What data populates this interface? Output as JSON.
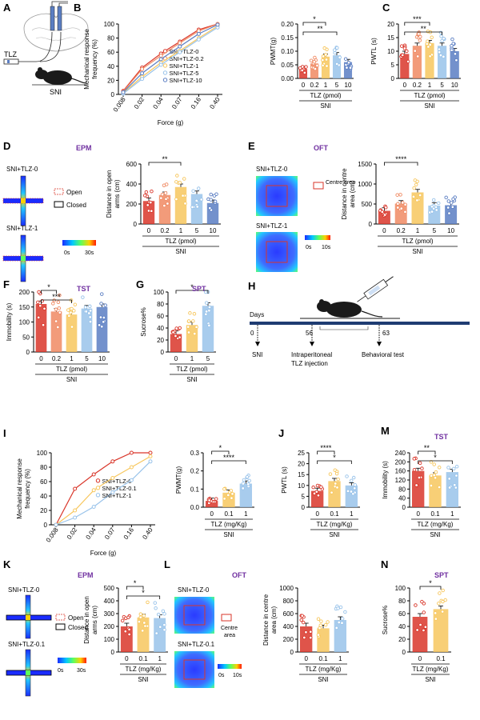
{
  "colors": {
    "dose0": "#d9362a",
    "dose02": "#f08a63",
    "dose1": "#f7c75e",
    "dose5": "#99c3ea",
    "dose10": "#5b7ec3",
    "sig": "#000000",
    "purple": "#7030a0"
  },
  "common": {
    "sni": "SNI",
    "tlz_pmol": "TLZ (pmol)",
    "tlz_mgkg": "TLZ (mg/Kg)"
  },
  "panel_a": {
    "letter": "A",
    "tlz": "TLZ",
    "sni": "SNI"
  },
  "panel_d": {
    "letter": "D",
    "title": "EPM",
    "img1": "SNI+TLZ-0",
    "img2": "SNI+TLZ-1",
    "open": "Open",
    "closed": "Closed",
    "scale_min": "0s",
    "scale_max": "30s"
  },
  "panel_e": {
    "letter": "E",
    "title": "OFT",
    "img1": "SNI+TLZ-0",
    "img2": "SNI+TLZ-1",
    "centre": "Centre area",
    "scale_min": "0s",
    "scale_max": "10s"
  },
  "panel_f": {
    "letter": "F",
    "title": "TST"
  },
  "panel_g": {
    "letter": "G",
    "title": "SPT"
  },
  "panel_h": {
    "letter": "H",
    "days": "Days",
    "d0": "0",
    "d56": "56",
    "d63": "63",
    "sni": "SNI",
    "inj1": "Intraperitoneal",
    "inj2": "TLZ injection",
    "test": "Behavioral test"
  },
  "panel_k": {
    "letter": "K",
    "title": "EPM",
    "img1": "SNI+TLZ-0",
    "img2": "SNI+TLZ-0.1",
    "open": "Open",
    "closed": "Closed",
    "scale_min": "0s",
    "scale_max": "30s"
  },
  "panel_l": {
    "letter": "L",
    "title": "OFT",
    "img1": "SNI+TLZ-0",
    "img2": "SNI+TLZ-0.1",
    "centre1": "Centre",
    "centre2": "area",
    "scale_min": "0s",
    "scale_max": "10s"
  },
  "panel_m": {
    "letter": "M",
    "title": "TST"
  },
  "panel_n": {
    "letter": "N",
    "title": "SPT"
  },
  "chart_data": [
    {
      "id": "B-line",
      "letter": "B",
      "type": "line",
      "xlabel": "Force (g)",
      "ylabel": "Mechanical response frequency (%)",
      "x": [
        "0.008",
        "0.02",
        "0.04",
        "0.07",
        "0.16",
        "0.40"
      ],
      "ylim": [
        0,
        100
      ],
      "yticks": [
        0,
        20,
        40,
        60,
        80,
        100
      ],
      "series": [
        {
          "name": "SNI+TLZ-0",
          "color": "#d9362a",
          "values": [
            5,
            38,
            58,
            75,
            92,
            100
          ]
        },
        {
          "name": "SNI+TLZ-0.2",
          "color": "#f08a63",
          "values": [
            4,
            36,
            55,
            73,
            90,
            100
          ]
        },
        {
          "name": "SNI+TLZ-1",
          "color": "#f7c75e",
          "values": [
            2,
            25,
            45,
            62,
            80,
            97
          ]
        },
        {
          "name": "SNI+TLZ-5",
          "color": "#99c3ea",
          "values": [
            1,
            22,
            42,
            60,
            78,
            95
          ]
        },
        {
          "name": "SNI+TLZ-10",
          "color": "#5b7ec3",
          "values": [
            3,
            30,
            50,
            68,
            86,
            99
          ]
        }
      ]
    },
    {
      "id": "B-bar",
      "letter": "",
      "type": "bar",
      "categories": [
        "0",
        "0.2",
        "1",
        "5",
        "10"
      ],
      "values": [
        0.035,
        0.055,
        0.08,
        0.085,
        0.06
      ],
      "colors": [
        "#d9362a",
        "#f08a63",
        "#f7c75e",
        "#99c3ea",
        "#5b7ec3"
      ],
      "ylabel": "PWMT(g)",
      "ylim": [
        0,
        0.2
      ],
      "yticks": [
        "0.00",
        "0.05",
        "0.10",
        "0.15",
        "0.20"
      ],
      "xlabel": "TLZ (pmol)",
      "group": "SNI",
      "sig": [
        {
          "from": 0,
          "to": 2,
          "label": "*"
        },
        {
          "from": 0,
          "to": 3,
          "label": "**"
        }
      ]
    },
    {
      "id": "C",
      "letter": "C",
      "type": "bar",
      "categories": [
        "0",
        "0.2",
        "1",
        "5",
        "10"
      ],
      "values": [
        9,
        12,
        13,
        12,
        10
      ],
      "colors": [
        "#d9362a",
        "#f08a63",
        "#f7c75e",
        "#99c3ea",
        "#5b7ec3"
      ],
      "ylabel": "PWTL (s)",
      "ylim": [
        0,
        20
      ],
      "yticks": [
        "0",
        "5",
        "10",
        "15",
        "20"
      ],
      "xlabel": "TLZ (pmol)",
      "group": "SNI",
      "sig": [
        {
          "from": 0,
          "to": 2,
          "label": "***"
        },
        {
          "from": 0,
          "to": 3,
          "label": "**"
        }
      ]
    },
    {
      "id": "D-bar",
      "letter": "",
      "type": "bar",
      "categories": [
        "0",
        "0.2",
        "1",
        "5",
        "10"
      ],
      "values": [
        230,
        290,
        370,
        300,
        210
      ],
      "colors": [
        "#d9362a",
        "#f08a63",
        "#f7c75e",
        "#99c3ea",
        "#5b7ec3"
      ],
      "ylabel": "Distance in open arms (cm)",
      "ylim": [
        0,
        600
      ],
      "yticks": [
        "0",
        "200",
        "400",
        "600"
      ],
      "xlabel": "TLZ (pmol)",
      "group": "SNI",
      "sig": [
        {
          "from": 0,
          "to": 2,
          "label": "**"
        }
      ]
    },
    {
      "id": "E-bar",
      "letter": "",
      "type": "bar",
      "categories": [
        "0",
        "0.2",
        "1",
        "5",
        "10"
      ],
      "values": [
        330,
        510,
        790,
        460,
        470
      ],
      "colors": [
        "#d9362a",
        "#f08a63",
        "#f7c75e",
        "#99c3ea",
        "#5b7ec3"
      ],
      "ylabel": "Distance in centre area (cm)",
      "ylim": [
        0,
        1500
      ],
      "yticks": [
        "0",
        "500",
        "1000",
        "1500"
      ],
      "xlabel": "TLZ (pmol)",
      "group": "SNI",
      "sig": [
        {
          "from": 0,
          "to": 2,
          "label": "****"
        }
      ]
    },
    {
      "id": "F",
      "letter": "F",
      "type": "bar",
      "categories": [
        "0",
        "0.2",
        "1",
        "5",
        "10"
      ],
      "values": [
        160,
        135,
        125,
        145,
        150
      ],
      "colors": [
        "#d9362a",
        "#f08a63",
        "#f7c75e",
        "#99c3ea",
        "#5b7ec3"
      ],
      "ylabel": "Immobility (s)",
      "ylim": [
        0,
        200
      ],
      "yticks": [
        "0",
        "50",
        "100",
        "150",
        "200"
      ],
      "xlabel": "TLZ (pmol)",
      "group": "SNI",
      "sig": [
        {
          "from": 0,
          "to": 1,
          "label": "*"
        },
        {
          "from": 0,
          "to": 2,
          "label": "***"
        }
      ]
    },
    {
      "id": "G",
      "letter": "G",
      "type": "bar",
      "categories": [
        "0",
        "1",
        "5"
      ],
      "values": [
        30,
        45,
        77
      ],
      "colors": [
        "#d9362a",
        "#f7c75e",
        "#99c3ea"
      ],
      "ylabel": "Sucrose%",
      "ylim": [
        0,
        100
      ],
      "yticks": [
        "0",
        "20",
        "40",
        "60",
        "80",
        "100"
      ],
      "xlabel": "TLZ (pmol)",
      "group": "SNI",
      "sig": [
        {
          "from": 0,
          "to": 2,
          "label": "*"
        }
      ]
    },
    {
      "id": "I-line",
      "letter": "I",
      "type": "line",
      "xlabel": "Force (g)",
      "ylabel": "Mechanical response frequency (%)",
      "x": [
        "0.008",
        "0.02",
        "0.04",
        "0.07",
        "0.16",
        "0.40"
      ],
      "ylim": [
        0,
        100
      ],
      "yticks": [
        0,
        20,
        40,
        60,
        80,
        100
      ],
      "series": [
        {
          "name": "SNI+TLZ-0",
          "color": "#d9362a",
          "values": [
            0,
            50,
            70,
            88,
            100,
            100
          ]
        },
        {
          "name": "SNI+TLZ-0.1",
          "color": "#f7c75e",
          "values": [
            0,
            20,
            48,
            65,
            80,
            95
          ]
        },
        {
          "name": "SNI+TLZ-1",
          "color": "#99c3ea",
          "values": [
            0,
            10,
            25,
            45,
            62,
            88
          ]
        }
      ]
    },
    {
      "id": "I-bar",
      "letter": "",
      "type": "bar",
      "categories": [
        "0",
        "0.1",
        "1"
      ],
      "values": [
        0.035,
        0.08,
        0.13
      ],
      "colors": [
        "#d9362a",
        "#f7c75e",
        "#99c3ea"
      ],
      "ylabel": "PWMT(g)",
      "ylim": [
        0,
        0.3
      ],
      "yticks": [
        "0.0",
        "0.1",
        "0.2",
        "0.3"
      ],
      "xlabel": "TLZ (mg/Kg)",
      "group": "SNI",
      "sig": [
        {
          "from": 0,
          "to": 1,
          "label": "*"
        },
        {
          "from": 0,
          "to": 2,
          "label": "****"
        }
      ]
    },
    {
      "id": "J",
      "letter": "J",
      "type": "bar",
      "categories": [
        "0",
        "0.1",
        "1"
      ],
      "values": [
        7.5,
        12,
        10
      ],
      "colors": [
        "#d9362a",
        "#f7c75e",
        "#99c3ea"
      ],
      "ylabel": "PWTL (s)",
      "ylim": [
        0,
        25
      ],
      "yticks": [
        "0",
        "5",
        "10",
        "15",
        "20",
        "25"
      ],
      "xlabel": "TLZ (mg/Kg)",
      "group": "SNI",
      "sig": [
        {
          "from": 0,
          "to": 1,
          "label": "****"
        },
        {
          "from": 0,
          "to": 2,
          "label": "*"
        }
      ]
    },
    {
      "id": "M",
      "letter": "M",
      "type": "bar",
      "categories": [
        "0",
        "0.1",
        "1"
      ],
      "values": [
        160,
        140,
        155
      ],
      "colors": [
        "#d9362a",
        "#f7c75e",
        "#99c3ea"
      ],
      "ylabel": "Immobility (s)",
      "ylim": [
        0,
        240
      ],
      "yticks": [
        "0",
        "40",
        "80",
        "120",
        "160",
        "200",
        "240"
      ],
      "xlabel": "TLZ (mg/Kg)",
      "group": "SNI",
      "sig": [
        {
          "from": 0,
          "to": 1,
          "label": "**"
        },
        {
          "from": 0,
          "to": 2,
          "label": "*"
        }
      ]
    },
    {
      "id": "K-bar",
      "letter": "",
      "type": "bar",
      "categories": [
        "0",
        "0.1",
        "1"
      ],
      "values": [
        200,
        270,
        265
      ],
      "colors": [
        "#d9362a",
        "#f7c75e",
        "#99c3ea"
      ],
      "ylabel": "Distance in open arms (cm)",
      "ylim": [
        0,
        500
      ],
      "yticks": [
        "0",
        "100",
        "200",
        "300",
        "400",
        "500"
      ],
      "xlabel": "TLZ (mg/Kg)",
      "group": "SNI",
      "sig": [
        {
          "from": 0,
          "to": 1,
          "label": "*"
        },
        {
          "from": 0,
          "to": 2,
          "label": "*"
        }
      ]
    },
    {
      "id": "L-bar",
      "letter": "",
      "type": "bar",
      "categories": [
        "0",
        "0.1",
        "1"
      ],
      "values": [
        400,
        370,
        500
      ],
      "colors": [
        "#d9362a",
        "#f7c75e",
        "#99c3ea"
      ],
      "ylabel": "Distance in centre area (cm)",
      "ylim": [
        0,
        1000
      ],
      "yticks": [
        "0",
        "200",
        "400",
        "600",
        "800",
        "1000"
      ],
      "xlabel": "TLZ (mg/Kg)",
      "group": "SNI",
      "sig": []
    },
    {
      "id": "N",
      "letter": "",
      "type": "bar",
      "categories": [
        "0",
        "0.1"
      ],
      "values": [
        55,
        67
      ],
      "colors": [
        "#d9362a",
        "#f7c75e"
      ],
      "ylabel": "Sucrose%",
      "ylim": [
        0,
        100
      ],
      "yticks": [
        "0",
        "20",
        "40",
        "60",
        "80",
        "100"
      ],
      "xlabel": "TLZ (mg/Kg)",
      "group": "SNI",
      "sig": [
        {
          "from": 0,
          "to": 1,
          "label": "*"
        }
      ]
    }
  ]
}
